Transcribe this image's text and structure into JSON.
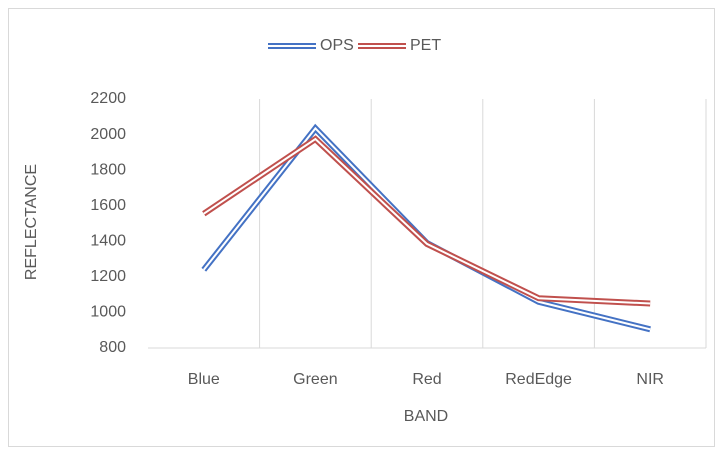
{
  "chart_data": {
    "type": "line",
    "categories": [
      "Blue",
      "Green",
      "Red",
      "RedEdge",
      "NIR"
    ],
    "series": [
      {
        "name": "OPS",
        "color": "#4472c4",
        "values": [
          1240,
          2035,
          1390,
          1060,
          905
        ]
      },
      {
        "name": "PET",
        "color": "#c0504d",
        "values": [
          1555,
          1975,
          1385,
          1080,
          1050
        ]
      }
    ],
    "x_label": "BAND",
    "y_label": "REFLECTANCE",
    "ylim": [
      800,
      2200
    ],
    "yticks": [
      800,
      1000,
      1200,
      1400,
      1600,
      1800,
      2000,
      2200
    ],
    "grid": true,
    "legend": "top"
  }
}
